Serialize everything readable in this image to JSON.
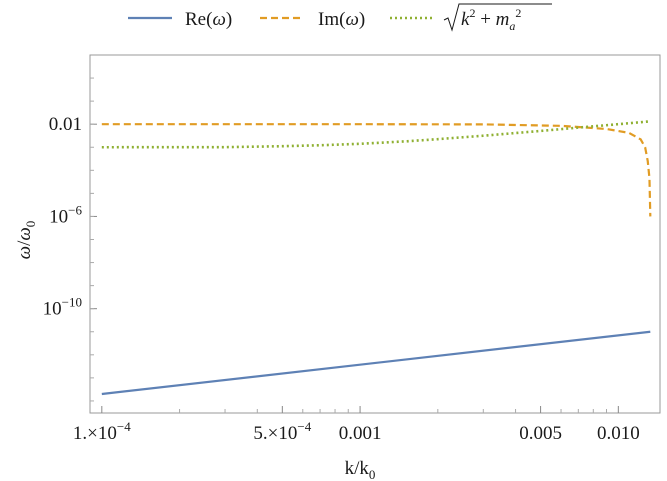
{
  "chart_data": {
    "type": "line",
    "x_scale": "log",
    "y_scale": "log",
    "xlim": [
      9e-05,
      0.0145
    ],
    "ylim": [
      3e-15,
      10
    ],
    "xlabel": "k/k0",
    "ylabel": "ω/ω0",
    "x_ticks": [
      {
        "value": 0.0001,
        "label": "1.×10−4"
      },
      {
        "value": 0.0005,
        "label": "5.×10−4"
      },
      {
        "value": 0.001,
        "label": "0.001"
      },
      {
        "value": 0.005,
        "label": "0.005"
      },
      {
        "value": 0.01,
        "label": "0.010"
      }
    ],
    "y_ticks": [
      {
        "value": 0.01,
        "label": "0.01"
      },
      {
        "value": 1e-06,
        "label": "10−6"
      },
      {
        "value": 1e-10,
        "label": "10−10"
      }
    ],
    "legend": {
      "placement": "top",
      "entries": [
        "Re(ω)",
        "Im(ω)",
        "√(k² + mₐ²)"
      ]
    },
    "series": [
      {
        "name": "Re(ω)",
        "color": "#5e81b5",
        "dash": "solid",
        "points": [
          [
            0.0001,
            2e-14
          ],
          [
            0.0133,
            1e-11
          ]
        ]
      },
      {
        "name": "Im(ω)",
        "color": "#e19c24",
        "dash": "dashed",
        "points": [
          [
            0.0001,
            0.01
          ],
          [
            0.001,
            0.01
          ],
          [
            0.003,
            0.0098
          ],
          [
            0.006,
            0.0085
          ],
          [
            0.009,
            0.0062
          ],
          [
            0.011,
            0.0042
          ],
          [
            0.0122,
            0.0022
          ],
          [
            0.0127,
            0.001
          ],
          [
            0.013,
            0.00025
          ],
          [
            0.0132,
            4.5e-05
          ],
          [
            0.0133,
            1e-06
          ]
        ]
      },
      {
        "name": "√(k² + mₐ²)",
        "color": "#8fb032",
        "dash": "dotted",
        "points": [
          [
            0.0001,
            0.001
          ],
          [
            0.0003,
            0.00101
          ],
          [
            0.0005,
            0.00111
          ],
          [
            0.0007,
            0.00122
          ],
          [
            0.001,
            0.00141
          ],
          [
            0.0015,
            0.0018
          ],
          [
            0.002,
            0.00224
          ],
          [
            0.003,
            0.00316
          ],
          [
            0.005,
            0.0051
          ],
          [
            0.007,
            0.0071
          ],
          [
            0.01,
            0.01
          ],
          [
            0.0133,
            0.0133
          ]
        ]
      }
    ]
  }
}
